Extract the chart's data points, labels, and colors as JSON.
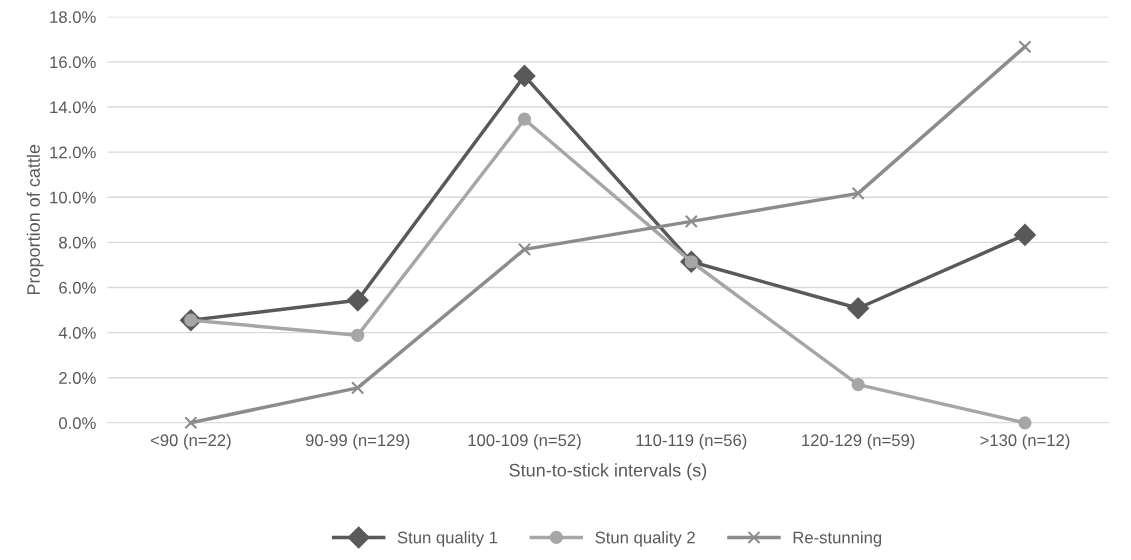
{
  "chart_data": {
    "type": "line",
    "xlabel": "Stun-to-stick intervals (s)",
    "ylabel": "Proportion of cattle",
    "categories": [
      "<90 (n=22)",
      "90-99 (n=129)",
      "100-109 (n=52)",
      "110-119 (n=56)",
      "120-129 (n=59)",
      ">130 (n=12)"
    ],
    "series": [
      {
        "name": "Stun quality 1",
        "color": "#595959",
        "marker": "diamond",
        "values": [
          4.55,
          5.43,
          15.38,
          7.14,
          5.08,
          8.33
        ]
      },
      {
        "name": "Stun quality 2",
        "color": "#a6a6a6",
        "marker": "circle",
        "values": [
          4.55,
          3.88,
          13.46,
          7.14,
          1.69,
          0.0
        ]
      },
      {
        "name": "Re-stunning",
        "color": "#8c8c8c",
        "marker": "cross",
        "values": [
          0.0,
          1.55,
          7.69,
          8.93,
          10.17,
          16.67
        ]
      }
    ],
    "ylim": [
      0,
      18
    ],
    "yticks": [
      {
        "value": 0,
        "label": "0.0%"
      },
      {
        "value": 2,
        "label": "2.0%"
      },
      {
        "value": 4,
        "label": "4.0%"
      },
      {
        "value": 6,
        "label": "6.0%"
      },
      {
        "value": 8,
        "label": "8.0%"
      },
      {
        "value": 10,
        "label": "10.0%"
      },
      {
        "value": 12,
        "label": "12.0%"
      },
      {
        "value": 14,
        "label": "14.0%"
      },
      {
        "value": 16,
        "label": "16.0%"
      },
      {
        "value": 18,
        "label": "18.0%"
      }
    ],
    "grid": "y",
    "legend": "bottom",
    "line_style": "solid"
  }
}
